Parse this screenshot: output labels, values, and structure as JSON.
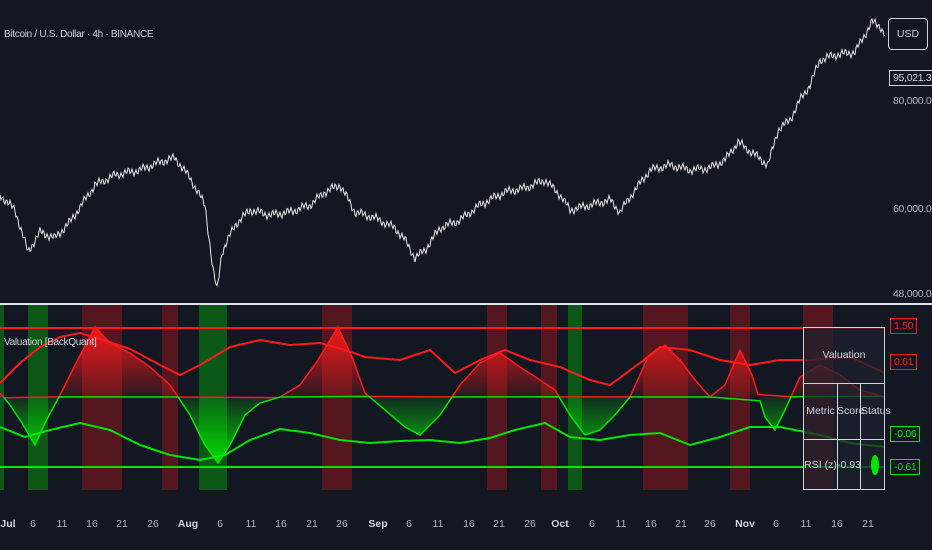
{
  "symbol": "Bitcoin / U.S. Dollar · 4h · BINANCE",
  "currency_button": "USD",
  "price_scale": {
    "current_price": "95,021.35",
    "hidden_label": "80,000.00",
    "labels": [
      "60,000.00",
      "48,000.00"
    ]
  },
  "indicator": {
    "title": "Valuation [BackQuant]",
    "scale_tags": [
      {
        "text": "1.50",
        "color": "#ff1a1a"
      },
      {
        "text": "0.61",
        "color": "#ff1a1a"
      },
      {
        "text": "-0.06",
        "color": "#00e600"
      },
      {
        "text": "-0.61",
        "color": "#00e600"
      }
    ],
    "colors": {
      "overvalued": "#ff1a1a",
      "undervalued": "#00e600",
      "price": "#e6e6e6"
    }
  },
  "table": {
    "title": "Valuation",
    "headers": [
      "Metric",
      "Score",
      "Status"
    ],
    "rows": [
      {
        "metric": "RSI (z)",
        "score": "-0.93",
        "status_color": "#00e600"
      }
    ]
  },
  "time_axis": [
    {
      "label": "Jul",
      "bold": true
    },
    {
      "label": "6"
    },
    {
      "label": "11"
    },
    {
      "label": "16"
    },
    {
      "label": "21"
    },
    {
      "label": "26"
    },
    {
      "label": "Aug",
      "bold": true
    },
    {
      "label": "6"
    },
    {
      "label": "11"
    },
    {
      "label": "16"
    },
    {
      "label": "21"
    },
    {
      "label": "26"
    },
    {
      "label": "Sep",
      "bold": true
    },
    {
      "label": "6"
    },
    {
      "label": "11"
    },
    {
      "label": "16"
    },
    {
      "label": "21"
    },
    {
      "label": "26"
    },
    {
      "label": "Oct",
      "bold": true
    },
    {
      "label": "6"
    },
    {
      "label": "11"
    },
    {
      "label": "16"
    },
    {
      "label": "21"
    },
    {
      "label": "26"
    },
    {
      "label": "Nov",
      "bold": true
    },
    {
      "label": "6"
    },
    {
      "label": "11"
    },
    {
      "label": "16"
    },
    {
      "label": "21"
    }
  ]
}
